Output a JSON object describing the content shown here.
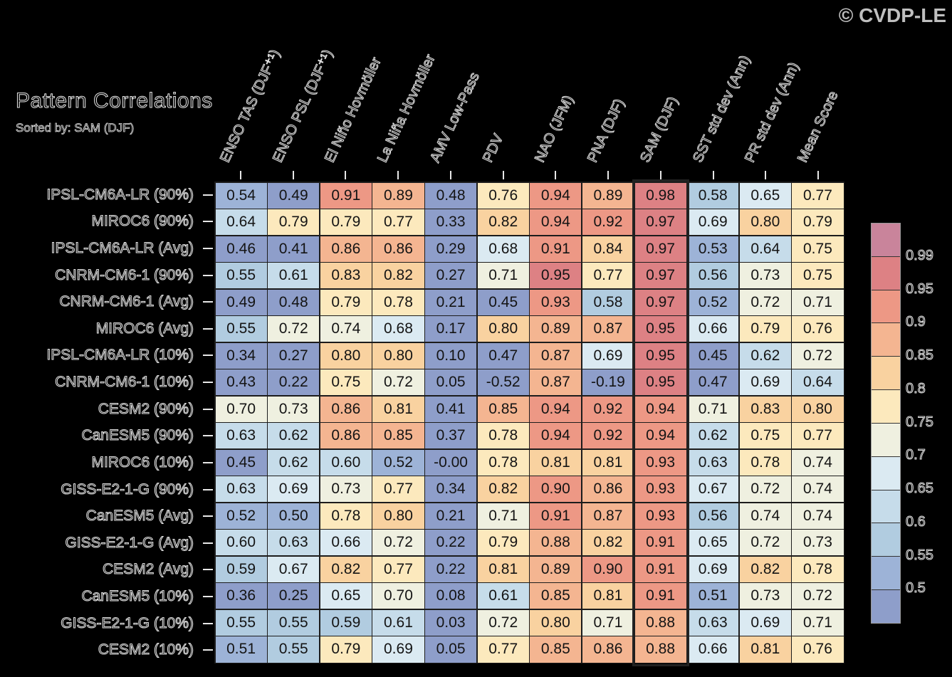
{
  "figure": {
    "title": "Pattern Correlations",
    "subtitle": "Sorted by: SAM (DJF)",
    "watermark": "© CVDP-LE"
  },
  "chart_data": {
    "type": "heatmap",
    "title": "Pattern Correlations",
    "subtitle": "Sorted by: SAM (DJF)",
    "sorted_by": "SAM (DJF)",
    "highlighted_column": "SAM (DJF)",
    "columns": [
      "ENSO TAS (DJF⁺¹)",
      "ENSO PSL (DJF⁺¹)",
      "El Niño Hovmöller",
      "La Niña Hovmöller",
      "AMV Low-Pass",
      "PDV",
      "NAO (JFM)",
      "PNA (DJF)",
      "SAM (DJF)",
      "SST std dev (Ann)",
      "PR std dev (Ann)",
      "Mean Score"
    ],
    "rows": [
      "IPSL-CM6A-LR (90%)",
      "MIROC6 (90%)",
      "IPSL-CM6A-LR (Avg)",
      "CNRM-CM6-1 (90%)",
      "CNRM-CM6-1 (Avg)",
      "MIROC6 (Avg)",
      "IPSL-CM6A-LR (10%)",
      "CNRM-CM6-1 (10%)",
      "CESM2 (90%)",
      "CanESM5 (90%)",
      "MIROC6 (10%)",
      "GISS-E2-1-G (90%)",
      "CanESM5 (Avg)",
      "GISS-E2-1-G (Avg)",
      "CESM2 (Avg)",
      "CanESM5 (10%)",
      "GISS-E2-1-G (10%)",
      "CESM2 (10%)"
    ],
    "values": [
      [
        "0.54",
        "0.49",
        "0.91",
        "0.89",
        "0.48",
        "0.76",
        "0.94",
        "0.89",
        "0.98",
        "0.58",
        "0.65",
        "0.77"
      ],
      [
        "0.64",
        "0.79",
        "0.79",
        "0.77",
        "0.33",
        "0.82",
        "0.94",
        "0.92",
        "0.97",
        "0.69",
        "0.80",
        "0.79"
      ],
      [
        "0.46",
        "0.41",
        "0.86",
        "0.86",
        "0.29",
        "0.68",
        "0.91",
        "0.84",
        "0.97",
        "0.53",
        "0.64",
        "0.75"
      ],
      [
        "0.55",
        "0.61",
        "0.83",
        "0.82",
        "0.27",
        "0.71",
        "0.95",
        "0.77",
        "0.97",
        "0.56",
        "0.73",
        "0.75"
      ],
      [
        "0.49",
        "0.48",
        "0.79",
        "0.78",
        "0.21",
        "0.45",
        "0.93",
        "0.58",
        "0.97",
        "0.52",
        "0.72",
        "0.71"
      ],
      [
        "0.55",
        "0.72",
        "0.74",
        "0.68",
        "0.17",
        "0.80",
        "0.89",
        "0.87",
        "0.95",
        "0.66",
        "0.79",
        "0.76"
      ],
      [
        "0.34",
        "0.27",
        "0.80",
        "0.80",
        "0.10",
        "0.47",
        "0.87",
        "0.69",
        "0.95",
        "0.45",
        "0.62",
        "0.72"
      ],
      [
        "0.43",
        "0.22",
        "0.75",
        "0.72",
        "0.05",
        "-0.52",
        "0.87",
        "-0.19",
        "0.95",
        "0.47",
        "0.69",
        "0.64"
      ],
      [
        "0.70",
        "0.73",
        "0.86",
        "0.81",
        "0.41",
        "0.85",
        "0.94",
        "0.92",
        "0.94",
        "0.71",
        "0.83",
        "0.80"
      ],
      [
        "0.63",
        "0.62",
        "0.86",
        "0.85",
        "0.37",
        "0.78",
        "0.94",
        "0.92",
        "0.94",
        "0.62",
        "0.75",
        "0.77"
      ],
      [
        "0.45",
        "0.62",
        "0.60",
        "0.52",
        "-0.00",
        "0.78",
        "0.81",
        "0.81",
        "0.93",
        "0.63",
        "0.78",
        "0.74"
      ],
      [
        "0.63",
        "0.69",
        "0.73",
        "0.77",
        "0.34",
        "0.82",
        "0.90",
        "0.86",
        "0.93",
        "0.67",
        "0.72",
        "0.74"
      ],
      [
        "0.52",
        "0.50",
        "0.78",
        "0.80",
        "0.21",
        "0.71",
        "0.91",
        "0.87",
        "0.93",
        "0.56",
        "0.74",
        "0.74"
      ],
      [
        "0.60",
        "0.63",
        "0.66",
        "0.72",
        "0.22",
        "0.79",
        "0.88",
        "0.82",
        "0.91",
        "0.65",
        "0.72",
        "0.73"
      ],
      [
        "0.59",
        "0.67",
        "0.82",
        "0.77",
        "0.22",
        "0.81",
        "0.89",
        "0.90",
        "0.91",
        "0.69",
        "0.82",
        "0.78"
      ],
      [
        "0.36",
        "0.25",
        "0.65",
        "0.70",
        "0.08",
        "0.61",
        "0.85",
        "0.81",
        "0.91",
        "0.51",
        "0.73",
        "0.72"
      ],
      [
        "0.55",
        "0.55",
        "0.59",
        "0.61",
        "0.03",
        "0.72",
        "0.80",
        "0.71",
        "0.88",
        "0.63",
        "0.69",
        "0.71"
      ],
      [
        "0.51",
        "0.55",
        "0.79",
        "0.69",
        "0.05",
        "0.77",
        "0.85",
        "0.86",
        "0.88",
        "0.66",
        "0.81",
        "0.76"
      ]
    ],
    "colorbar": {
      "tick_labels": [
        "0.99",
        "0.95",
        "0.9",
        "0.85",
        "0.8",
        "0.75",
        "0.7",
        "0.65",
        "0.6",
        "0.55",
        "0.5"
      ],
      "bin_edges": [
        0.5,
        0.55,
        0.6,
        0.65,
        0.7,
        0.75,
        0.8,
        0.85,
        0.9,
        0.95,
        0.99
      ],
      "colors_low_to_high": [
        "#8e9eca",
        "#9db3d7",
        "#b1cce0",
        "#c6dcea",
        "#dbeaf2",
        "#eff0e0",
        "#fce9bd",
        "#f9d2a0",
        "#f4b591",
        "#ed9885",
        "#dd8184",
        "#c9849b"
      ]
    },
    "legend_position": "right",
    "grid": true
  }
}
